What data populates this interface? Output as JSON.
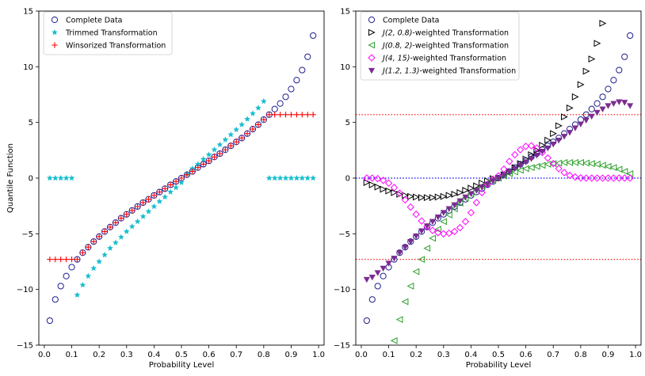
{
  "chart_data": [
    {
      "type": "scatter",
      "panel": "left",
      "xlabel": "Probability Level",
      "ylabel": "Quantile Function",
      "xlim": [
        -0.02,
        1.02
      ],
      "ylim": [
        -15,
        15
      ],
      "xticks": [
        0.0,
        0.1,
        0.2,
        0.3,
        0.4,
        0.5,
        0.6,
        0.7,
        0.8,
        0.9,
        1.0
      ],
      "xtick_labels": [
        "0.0",
        "0.1",
        "0.2",
        "0.3",
        "0.4",
        "0.5",
        "0.6",
        "0.7",
        "0.8",
        "0.9",
        "1.0"
      ],
      "yticks": [
        -15,
        -10,
        -5,
        0,
        5,
        10,
        15
      ],
      "ytick_labels": [
        "−15",
        "−10",
        "−5",
        "0",
        "5",
        "10",
        "15"
      ],
      "legend_location": "top-left",
      "series": [
        {
          "name": "Complete Data",
          "marker": "circle",
          "color": "#1f1f8f",
          "x": [
            0.02,
            0.04,
            0.06,
            0.08,
            0.1,
            0.12,
            0.14,
            0.16,
            0.18,
            0.2,
            0.22,
            0.24,
            0.26,
            0.28,
            0.3,
            0.32,
            0.34,
            0.36,
            0.38,
            0.4,
            0.42,
            0.44,
            0.46,
            0.48,
            0.5,
            0.52,
            0.54,
            0.56,
            0.58,
            0.6,
            0.62,
            0.64,
            0.66,
            0.68,
            0.7,
            0.72,
            0.74,
            0.76,
            0.78,
            0.8,
            0.82,
            0.84,
            0.86,
            0.88,
            0.9,
            0.92,
            0.94,
            0.96,
            0.98
          ],
          "y": [
            -12.8,
            -10.9,
            -9.7,
            -8.8,
            -8.0,
            -7.3,
            -6.7,
            -6.2,
            -5.7,
            -5.25,
            -4.8,
            -4.4,
            -4.0,
            -3.6,
            -3.25,
            -2.9,
            -2.55,
            -2.2,
            -1.9,
            -1.55,
            -1.25,
            -0.95,
            -0.6,
            -0.3,
            0.0,
            0.3,
            0.6,
            0.95,
            1.25,
            1.55,
            1.9,
            2.2,
            2.55,
            2.9,
            3.25,
            3.6,
            4.0,
            4.4,
            4.8,
            5.25,
            5.7,
            6.2,
            6.7,
            7.3,
            8.0,
            8.8,
            9.7,
            10.9,
            12.8
          ]
        },
        {
          "name": "Trimmed Transformation",
          "marker": "star",
          "color": "#17becf",
          "x": [
            0.02,
            0.04,
            0.06,
            0.08,
            0.1,
            0.12,
            0.14,
            0.16,
            0.18,
            0.2,
            0.22,
            0.24,
            0.26,
            0.28,
            0.3,
            0.32,
            0.34,
            0.36,
            0.38,
            0.4,
            0.42,
            0.44,
            0.46,
            0.48,
            0.5,
            0.52,
            0.54,
            0.56,
            0.58,
            0.6,
            0.62,
            0.64,
            0.66,
            0.68,
            0.7,
            0.72,
            0.74,
            0.76,
            0.78,
            0.8,
            0.82,
            0.84,
            0.86,
            0.88,
            0.9,
            0.92,
            0.94,
            0.96,
            0.98
          ],
          "y": [
            0,
            0,
            0,
            0,
            0,
            -10.5,
            -9.6,
            -8.8,
            -8.1,
            -7.5,
            -6.9,
            -6.3,
            -5.8,
            -5.3,
            -4.8,
            -4.35,
            -3.9,
            -3.45,
            -3.0,
            -2.55,
            -2.1,
            -1.7,
            -1.25,
            -0.85,
            -0.4,
            0.4,
            0.85,
            1.25,
            1.7,
            2.1,
            2.55,
            3.0,
            3.45,
            3.9,
            4.35,
            4.8,
            5.3,
            5.8,
            6.3,
            6.9,
            0,
            0,
            0,
            0,
            0,
            0,
            0,
            0,
            0
          ]
        },
        {
          "name": "Winsorized Transformation",
          "marker": "plus",
          "color": "#ff0000",
          "x": [
            0.02,
            0.04,
            0.06,
            0.08,
            0.1,
            0.12,
            0.14,
            0.16,
            0.18,
            0.2,
            0.22,
            0.24,
            0.26,
            0.28,
            0.3,
            0.32,
            0.34,
            0.36,
            0.38,
            0.4,
            0.42,
            0.44,
            0.46,
            0.48,
            0.5,
            0.52,
            0.54,
            0.56,
            0.58,
            0.6,
            0.62,
            0.64,
            0.66,
            0.68,
            0.7,
            0.72,
            0.74,
            0.76,
            0.78,
            0.8,
            0.82,
            0.84,
            0.86,
            0.88,
            0.9,
            0.92,
            0.94,
            0.96,
            0.98
          ],
          "y": [
            -7.3,
            -7.3,
            -7.3,
            -7.3,
            -7.3,
            -7.3,
            -6.7,
            -6.2,
            -5.7,
            -5.25,
            -4.8,
            -4.4,
            -4.0,
            -3.6,
            -3.25,
            -2.9,
            -2.55,
            -2.2,
            -1.9,
            -1.55,
            -1.25,
            -0.95,
            -0.6,
            -0.3,
            0.0,
            0.3,
            0.6,
            0.95,
            1.25,
            1.55,
            1.9,
            2.2,
            2.55,
            2.9,
            3.25,
            3.6,
            4.0,
            4.4,
            4.8,
            5.25,
            5.7,
            5.7,
            5.7,
            5.7,
            5.7,
            5.7,
            5.7,
            5.7,
            5.7
          ]
        }
      ]
    },
    {
      "type": "scatter",
      "panel": "right",
      "xlabel": "Probability Level",
      "ylabel": "",
      "xlim": [
        -0.02,
        1.02
      ],
      "ylim": [
        -15,
        15
      ],
      "xticks": [
        0.0,
        0.1,
        0.2,
        0.3,
        0.4,
        0.5,
        0.6,
        0.7,
        0.8,
        0.9,
        1.0
      ],
      "xtick_labels": [
        "0.0",
        "0.1",
        "0.2",
        "0.3",
        "0.4",
        "0.5",
        "0.6",
        "0.7",
        "0.8",
        "0.9",
        "1.0"
      ],
      "yticks": [
        -15,
        -10,
        -5,
        0,
        5,
        10,
        15
      ],
      "ytick_labels": [
        "−15",
        "−10",
        "−5",
        "0",
        "5",
        "10",
        "15"
      ],
      "legend_location": "top-left",
      "reference_lines": [
        {
          "y": 5.7,
          "color": "#ff0000",
          "style": "dotted"
        },
        {
          "y": 0,
          "color": "#0000ff",
          "style": "dotted"
        },
        {
          "y": -7.3,
          "color": "#ff0000",
          "style": "dotted"
        }
      ],
      "series": [
        {
          "name": "Complete Data",
          "marker": "circle",
          "color": "#1f1f8f",
          "x": [
            0.02,
            0.04,
            0.06,
            0.08,
            0.1,
            0.12,
            0.14,
            0.16,
            0.18,
            0.2,
            0.22,
            0.24,
            0.26,
            0.28,
            0.3,
            0.32,
            0.34,
            0.36,
            0.38,
            0.4,
            0.42,
            0.44,
            0.46,
            0.48,
            0.5,
            0.52,
            0.54,
            0.56,
            0.58,
            0.6,
            0.62,
            0.64,
            0.66,
            0.68,
            0.7,
            0.72,
            0.74,
            0.76,
            0.78,
            0.8,
            0.82,
            0.84,
            0.86,
            0.88,
            0.9,
            0.92,
            0.94,
            0.96,
            0.98
          ],
          "y": [
            -12.8,
            -10.9,
            -9.7,
            -8.8,
            -8.0,
            -7.3,
            -6.7,
            -6.2,
            -5.7,
            -5.25,
            -4.8,
            -4.4,
            -4.0,
            -3.6,
            -3.25,
            -2.9,
            -2.55,
            -2.2,
            -1.9,
            -1.55,
            -1.25,
            -0.95,
            -0.6,
            -0.3,
            0.0,
            0.3,
            0.6,
            0.95,
            1.25,
            1.55,
            1.9,
            2.2,
            2.55,
            2.9,
            3.25,
            3.6,
            4.0,
            4.4,
            4.8,
            5.25,
            5.7,
            6.2,
            6.7,
            7.3,
            8.0,
            8.8,
            9.7,
            10.9,
            12.8
          ]
        },
        {
          "name": "J(2, 0.8)-weighted Transformation",
          "label_main": "J",
          "label_args": "(2, 0.8)",
          "label_suffix": "-weighted Transformation",
          "marker": "triangle-right",
          "color": "#000000",
          "x": [
            0.02,
            0.04,
            0.06,
            0.08,
            0.1,
            0.12,
            0.14,
            0.16,
            0.18,
            0.2,
            0.22,
            0.24,
            0.26,
            0.28,
            0.3,
            0.32,
            0.34,
            0.36,
            0.38,
            0.4,
            0.42,
            0.44,
            0.46,
            0.48,
            0.5,
            0.52,
            0.54,
            0.56,
            0.58,
            0.6,
            0.62,
            0.64,
            0.66,
            0.68,
            0.7,
            0.72,
            0.74,
            0.76,
            0.78,
            0.8,
            0.82,
            0.84,
            0.86,
            0.88
          ],
          "y": [
            -0.4,
            -0.6,
            -0.8,
            -1.0,
            -1.15,
            -1.3,
            -1.45,
            -1.55,
            -1.65,
            -1.7,
            -1.75,
            -1.75,
            -1.75,
            -1.7,
            -1.65,
            -1.55,
            -1.45,
            -1.3,
            -1.1,
            -0.9,
            -0.7,
            -0.45,
            -0.25,
            -0.05,
            0.0,
            0.3,
            0.6,
            0.95,
            1.3,
            1.7,
            2.1,
            2.5,
            2.95,
            3.4,
            4.0,
            4.7,
            5.5,
            6.3,
            7.3,
            8.4,
            9.6,
            10.7,
            12.1,
            13.9
          ]
        },
        {
          "name": "J(0.8, 2)-weighted Transformation",
          "label_main": "J",
          "label_args": "(0.8, 2)",
          "label_suffix": "-weighted Transformation",
          "marker": "triangle-left",
          "color": "#2ca02c",
          "x": [
            0.12,
            0.14,
            0.16,
            0.18,
            0.2,
            0.22,
            0.24,
            0.26,
            0.28,
            0.3,
            0.32,
            0.34,
            0.36,
            0.38,
            0.4,
            0.42,
            0.44,
            0.46,
            0.48,
            0.5,
            0.52,
            0.54,
            0.56,
            0.58,
            0.6,
            0.62,
            0.64,
            0.66,
            0.68,
            0.7,
            0.72,
            0.74,
            0.76,
            0.78,
            0.8,
            0.82,
            0.84,
            0.86,
            0.88,
            0.9,
            0.92,
            0.94,
            0.96,
            0.98
          ],
          "y": [
            -14.6,
            -12.7,
            -11.1,
            -9.7,
            -8.4,
            -7.3,
            -6.3,
            -5.4,
            -4.6,
            -3.9,
            -3.3,
            -2.75,
            -2.25,
            -1.8,
            -1.4,
            -1.05,
            -0.75,
            -0.45,
            -0.2,
            0.0,
            0.2,
            0.4,
            0.55,
            0.7,
            0.85,
            0.95,
            1.05,
            1.15,
            1.25,
            1.3,
            1.35,
            1.4,
            1.4,
            1.4,
            1.4,
            1.35,
            1.3,
            1.25,
            1.15,
            1.05,
            0.95,
            0.8,
            0.6,
            0.4
          ]
        },
        {
          "name": "J(4, 15)-weighted Transformation",
          "label_main": "J",
          "label_args": "(4, 15)",
          "label_suffix": "-weighted Transformation",
          "marker": "diamond",
          "color": "#ff00ff",
          "x": [
            0.02,
            0.04,
            0.06,
            0.08,
            0.1,
            0.12,
            0.14,
            0.16,
            0.18,
            0.2,
            0.22,
            0.24,
            0.26,
            0.28,
            0.3,
            0.32,
            0.34,
            0.36,
            0.38,
            0.4,
            0.42,
            0.44,
            0.46,
            0.48,
            0.5,
            0.52,
            0.54,
            0.56,
            0.58,
            0.6,
            0.62,
            0.64,
            0.66,
            0.68,
            0.7,
            0.72,
            0.74,
            0.76,
            0.78,
            0.8,
            0.82,
            0.84,
            0.86,
            0.88,
            0.9,
            0.92,
            0.94,
            0.96,
            0.98
          ],
          "y": [
            0.0,
            0.0,
            -0.05,
            -0.2,
            -0.45,
            -0.85,
            -1.35,
            -1.95,
            -2.6,
            -3.25,
            -3.85,
            -4.35,
            -4.7,
            -4.9,
            -5.0,
            -4.95,
            -4.8,
            -4.45,
            -3.9,
            -3.1,
            -2.2,
            -1.3,
            -0.55,
            -0.1,
            0.2,
            0.8,
            1.5,
            2.1,
            2.55,
            2.85,
            2.9,
            2.7,
            2.3,
            1.8,
            1.3,
            0.85,
            0.5,
            0.25,
            0.1,
            0.02,
            0.0,
            0.0,
            0.0,
            0.0,
            0.0,
            0.0,
            0.0,
            0.0,
            0.0
          ]
        },
        {
          "name": "J(1.2, 1.3)-weighted Transformation",
          "label_main": "J",
          "label_args": "(1.2, 1.3)",
          "label_suffix": "-weighted Transformation",
          "marker": "triangle-down",
          "color": "#7b2d8e",
          "x": [
            0.02,
            0.04,
            0.06,
            0.08,
            0.1,
            0.12,
            0.14,
            0.16,
            0.18,
            0.2,
            0.22,
            0.24,
            0.26,
            0.28,
            0.3,
            0.32,
            0.34,
            0.36,
            0.38,
            0.4,
            0.42,
            0.44,
            0.46,
            0.48,
            0.5,
            0.52,
            0.54,
            0.56,
            0.58,
            0.6,
            0.62,
            0.64,
            0.66,
            0.68,
            0.7,
            0.72,
            0.74,
            0.76,
            0.78,
            0.8,
            0.82,
            0.84,
            0.86,
            0.88,
            0.9,
            0.92,
            0.94,
            0.96,
            0.98
          ],
          "y": [
            -9.1,
            -8.9,
            -8.5,
            -8.1,
            -7.65,
            -7.2,
            -6.7,
            -6.2,
            -5.7,
            -5.2,
            -4.75,
            -4.3,
            -3.9,
            -3.5,
            -3.1,
            -2.75,
            -2.4,
            -2.05,
            -1.7,
            -1.4,
            -1.1,
            -0.8,
            -0.55,
            -0.25,
            0.0,
            0.25,
            0.55,
            0.85,
            1.15,
            1.45,
            1.75,
            2.05,
            2.4,
            2.7,
            3.05,
            3.4,
            3.75,
            4.1,
            4.5,
            4.85,
            5.2,
            5.55,
            5.9,
            6.2,
            6.5,
            6.7,
            6.85,
            6.8,
            6.5
          ]
        }
      ]
    }
  ]
}
